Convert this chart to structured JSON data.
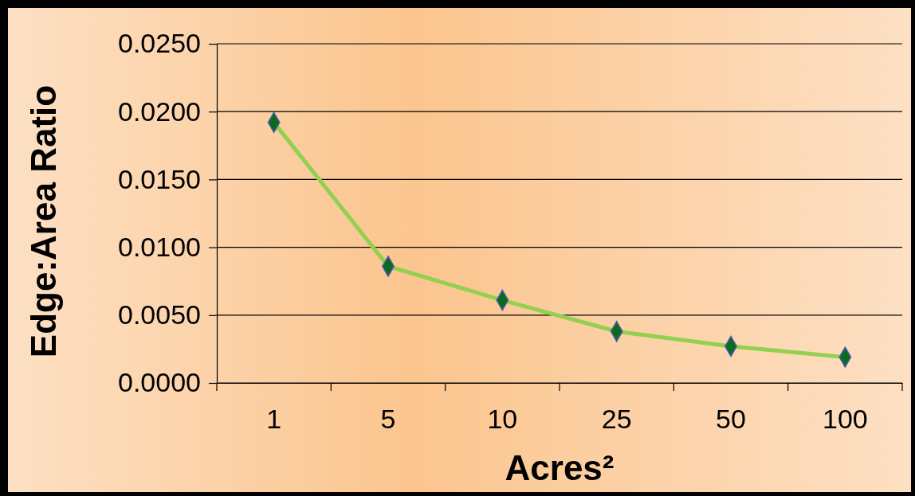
{
  "chart_data": {
    "type": "line",
    "xlabel": "Acres²",
    "ylabel": "Edge:Area Ratio",
    "categories": [
      "1",
      "5",
      "10",
      "25",
      "50",
      "100"
    ],
    "series": [
      {
        "color": "#92d050",
        "values": [
          0.0192,
          0.0086,
          0.0061,
          0.0038,
          0.0027,
          0.0019
        ]
      }
    ],
    "ylim": [
      0,
      0.025
    ],
    "yticks": [
      {
        "value": 0,
        "label": "0.0000"
      },
      {
        "value": 0.005,
        "label": "0.0050"
      },
      {
        "value": 0.01,
        "label": "0.0100"
      },
      {
        "value": 0.015,
        "label": "0.0150"
      },
      {
        "value": 0.02,
        "label": "0.0200"
      },
      {
        "value": 0.025,
        "label": "0.0250"
      }
    ],
    "grid": "y",
    "marker": "diamond",
    "line_style": "solid"
  }
}
